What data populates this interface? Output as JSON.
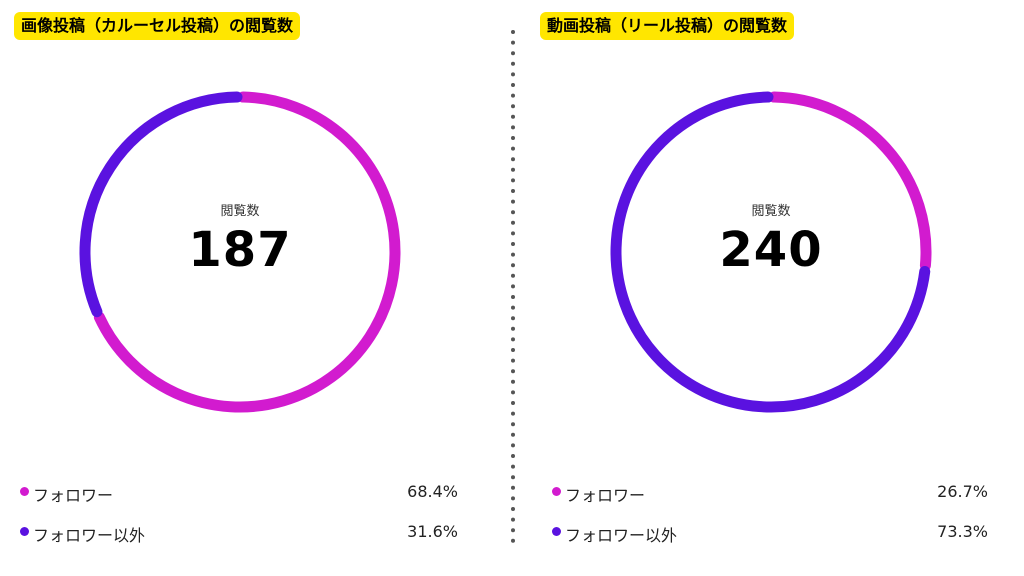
{
  "colors": {
    "follower": "#d21bcf",
    "non_follower": "#5a12e0",
    "title_bg": "#ffe600",
    "divider": "#555555"
  },
  "panels": [
    {
      "title": "画像投稿（カルーセル投稿）の閲覧数",
      "center_label": "閲覧数",
      "total": "187",
      "legend": [
        {
          "name": "フォロワー",
          "percent_label": "68.4%"
        },
        {
          "name": "フォロワー以外",
          "percent_label": "31.6%"
        }
      ]
    },
    {
      "title": "動画投稿（リール投稿）の閲覧数",
      "center_label": "閲覧数",
      "total": "240",
      "legend": [
        {
          "name": "フォロワー",
          "percent_label": "26.7%"
        },
        {
          "name": "フォロワー以外",
          "percent_label": "73.3%"
        }
      ]
    }
  ],
  "chart_data": [
    {
      "type": "pie",
      "title": "画像投稿（カルーセル投稿）の閲覧数",
      "total": 187,
      "categories": [
        "フォロワー",
        "フォロワー以外"
      ],
      "values": [
        68.4,
        31.6
      ],
      "colors": [
        "#d21bcf",
        "#5a12e0"
      ],
      "legend_placement": "bottom"
    },
    {
      "type": "pie",
      "title": "動画投稿（リール投稿）の閲覧数",
      "total": 240,
      "categories": [
        "フォロワー",
        "フォロワー以外"
      ],
      "values": [
        26.7,
        73.3
      ],
      "colors": [
        "#d21bcf",
        "#5a12e0"
      ],
      "legend_placement": "bottom"
    }
  ]
}
